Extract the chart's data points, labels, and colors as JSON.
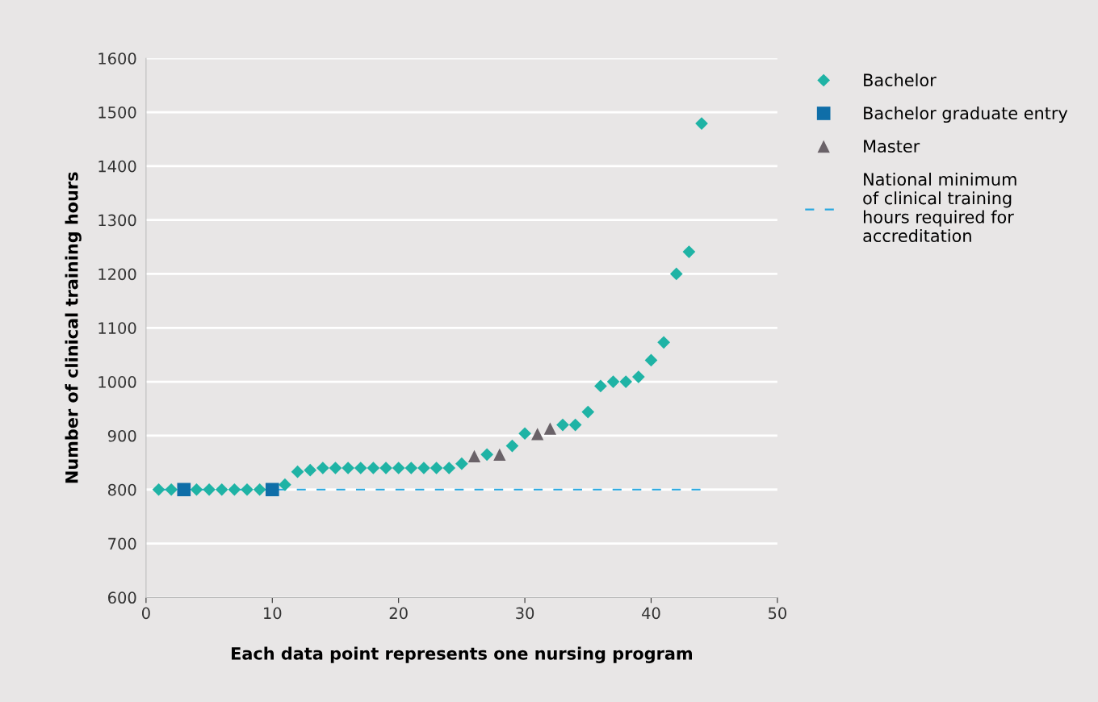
{
  "chart_data": {
    "type": "scatter",
    "xlabel": "Each data point represents one nursing program",
    "ylabel": "Number of clinical training hours",
    "xlim": [
      0,
      50
    ],
    "xticks": [
      0,
      10,
      20,
      30,
      40,
      50
    ],
    "ylim": [
      600,
      1600
    ],
    "yticks": [
      600,
      700,
      800,
      900,
      1000,
      1100,
      1200,
      1300,
      1400,
      1500,
      1600
    ],
    "grid": "y",
    "legend": "right",
    "series": [
      {
        "name": "Bachelor",
        "color": "#1fb3a5",
        "marker": "diamond",
        "x": [
          1,
          2,
          4,
          5,
          6,
          7,
          8,
          9,
          11,
          12,
          13,
          14,
          15,
          16,
          17,
          18,
          19,
          20,
          21,
          22,
          23,
          24,
          25,
          27,
          29,
          30,
          33,
          34,
          35,
          36,
          37,
          38,
          39,
          40,
          41,
          42,
          43,
          44
        ],
        "values": [
          800,
          800,
          800,
          800,
          800,
          800,
          800,
          800,
          809,
          833,
          836,
          840,
          840,
          840,
          840,
          840,
          840,
          840,
          840,
          840,
          840,
          840,
          848,
          865,
          881,
          904,
          920,
          920,
          944,
          992,
          1000,
          1000,
          1009,
          1040,
          1073,
          1200,
          1241,
          1479
        ]
      },
      {
        "name": "Bachelor graduate entry",
        "color": "#0f6ea8",
        "marker": "square",
        "x": [
          3,
          10
        ],
        "values": [
          800,
          800
        ]
      },
      {
        "name": "Master",
        "color": "#6a6268",
        "marker": "triangle",
        "x": [
          26,
          28,
          31,
          32
        ],
        "values": [
          862,
          865,
          903,
          913
        ]
      },
      {
        "name": "National minimum\nof clinical training\nhours required for\naccreditation",
        "type": "line",
        "line_style": "dashed",
        "marker": "none",
        "color": "#2aa8df",
        "x": [
          1,
          44
        ],
        "values": [
          800,
          800
        ]
      }
    ]
  }
}
